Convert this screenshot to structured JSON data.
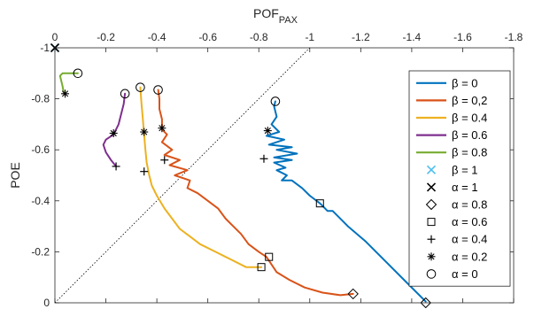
{
  "chart_data": {
    "type": "line",
    "xlabel_main": "POF",
    "xlabel_sub": "PAX",
    "ylabel": "POE",
    "x_axis_location": "top",
    "x_reversed": true,
    "xlim": [
      0,
      -1.8
    ],
    "ylim": [
      -1,
      0
    ],
    "xticks": [
      0,
      -0.2,
      -0.4,
      -0.6,
      -0.8,
      -1,
      -1.2,
      -1.4,
      -1.6,
      -1.8
    ],
    "xtick_labels": [
      "0",
      "-0.2",
      "-0.4",
      "-0.6",
      "-0.8",
      "-1",
      "-1.2",
      "-1.4",
      "-1.6",
      "-1.8"
    ],
    "yticks": [
      0,
      -0.2,
      -0.4,
      -0.6,
      -0.8,
      -1
    ],
    "ytick_labels": [
      "0",
      "-0.2",
      "-0.4",
      "-0.6",
      "-0.8",
      "-1"
    ],
    "grid": false,
    "reference_line": {
      "style": "dotted",
      "color": "#000000",
      "points": [
        [
          0,
          0
        ],
        [
          -1,
          -1
        ]
      ]
    },
    "series": [
      {
        "name": "β = 0",
        "color": "#0072BD",
        "points": [
          [
            -1.455,
            -0.005
          ],
          [
            -1.38,
            -0.08
          ],
          [
            -1.3,
            -0.16
          ],
          [
            -1.22,
            -0.24
          ],
          [
            -1.15,
            -0.3
          ],
          [
            -1.09,
            -0.36
          ],
          [
            -1.07,
            -0.36
          ],
          [
            -1.05,
            -0.38
          ],
          [
            -1.04,
            -0.39
          ],
          [
            -1.0,
            -0.42
          ],
          [
            -0.97,
            -0.45
          ],
          [
            -0.93,
            -0.48
          ],
          [
            -0.89,
            -0.48
          ],
          [
            -0.91,
            -0.5
          ],
          [
            -0.87,
            -0.52
          ],
          [
            -0.905,
            -0.53
          ],
          [
            -0.86,
            -0.55
          ],
          [
            -0.93,
            -0.56
          ],
          [
            -0.86,
            -0.57
          ],
          [
            -0.95,
            -0.585
          ],
          [
            -0.87,
            -0.6
          ],
          [
            -0.93,
            -0.61
          ],
          [
            -0.84,
            -0.62
          ],
          [
            -0.9,
            -0.64
          ],
          [
            -0.83,
            -0.655
          ],
          [
            -0.88,
            -0.67
          ],
          [
            -0.85,
            -0.7
          ],
          [
            -0.87,
            -0.73
          ],
          [
            -0.86,
            -0.77
          ],
          [
            -0.865,
            -0.79
          ]
        ]
      },
      {
        "name": "β = 0,2",
        "color": "#D95319",
        "points": [
          [
            -1.17,
            -0.035
          ],
          [
            -1.12,
            -0.03
          ],
          [
            -1.05,
            -0.04
          ],
          [
            -0.98,
            -0.06
          ],
          [
            -0.92,
            -0.09
          ],
          [
            -0.87,
            -0.12
          ],
          [
            -0.83,
            -0.18
          ],
          [
            -0.8,
            -0.2
          ],
          [
            -0.76,
            -0.23
          ],
          [
            -0.73,
            -0.27
          ],
          [
            -0.7,
            -0.3
          ],
          [
            -0.67,
            -0.33
          ],
          [
            -0.64,
            -0.37
          ],
          [
            -0.6,
            -0.4
          ],
          [
            -0.56,
            -0.43
          ],
          [
            -0.52,
            -0.45
          ],
          [
            -0.53,
            -0.48
          ],
          [
            -0.47,
            -0.5
          ],
          [
            -0.52,
            -0.52
          ],
          [
            -0.45,
            -0.54
          ],
          [
            -0.49,
            -0.56
          ],
          [
            -0.43,
            -0.58
          ],
          [
            -0.46,
            -0.6
          ],
          [
            -0.42,
            -0.63
          ],
          [
            -0.44,
            -0.66
          ],
          [
            -0.42,
            -0.68
          ],
          [
            -0.42,
            -0.72
          ],
          [
            -0.41,
            -0.76
          ],
          [
            -0.41,
            -0.8
          ],
          [
            -0.405,
            -0.835
          ]
        ]
      },
      {
        "name": "β = 0.4",
        "color": "#EDB120",
        "points": [
          [
            -0.81,
            -0.14
          ],
          [
            -0.75,
            -0.14
          ],
          [
            -0.69,
            -0.17
          ],
          [
            -0.63,
            -0.2
          ],
          [
            -0.57,
            -0.23
          ],
          [
            -0.53,
            -0.26
          ],
          [
            -0.49,
            -0.29
          ],
          [
            -0.46,
            -0.33
          ],
          [
            -0.43,
            -0.37
          ],
          [
            -0.4,
            -0.42
          ],
          [
            -0.38,
            -0.46
          ],
          [
            -0.37,
            -0.5
          ],
          [
            -0.36,
            -0.55
          ],
          [
            -0.355,
            -0.6
          ],
          [
            -0.35,
            -0.66
          ],
          [
            -0.345,
            -0.72
          ],
          [
            -0.34,
            -0.78
          ],
          [
            -0.335,
            -0.845
          ]
        ]
      },
      {
        "name": "β = 0.6",
        "color": "#7E2F8E",
        "points": [
          [
            -0.24,
            -0.535
          ],
          [
            -0.22,
            -0.56
          ],
          [
            -0.2,
            -0.59
          ],
          [
            -0.19,
            -0.62
          ],
          [
            -0.2,
            -0.64
          ],
          [
            -0.23,
            -0.66
          ],
          [
            -0.25,
            -0.7
          ],
          [
            -0.26,
            -0.74
          ],
          [
            -0.27,
            -0.78
          ],
          [
            -0.275,
            -0.82
          ]
        ]
      },
      {
        "name": "β = 0.8",
        "color": "#77AC30",
        "points": [
          [
            -0.035,
            -0.82
          ],
          [
            -0.03,
            -0.85
          ],
          [
            -0.025,
            -0.87
          ],
          [
            -0.02,
            -0.89
          ],
          [
            -0.03,
            -0.9
          ],
          [
            -0.09,
            -0.9
          ]
        ]
      },
      {
        "name": "β = 1",
        "color": "#4DBEEE",
        "points": [
          [
            0,
            -1
          ]
        ]
      }
    ],
    "alpha_markers": [
      {
        "name": "α = 1",
        "symbol": "x",
        "points": [
          [
            0,
            -1
          ]
        ]
      },
      {
        "name": "α = 0.8",
        "symbol": "diamond",
        "points": [
          [
            -1.455,
            0
          ],
          [
            -1.17,
            -0.035
          ]
        ]
      },
      {
        "name": "α = 0.6",
        "symbol": "square",
        "points": [
          [
            -1.04,
            -0.39
          ],
          [
            -0.84,
            -0.18
          ],
          [
            -0.81,
            -0.14
          ]
        ]
      },
      {
        "name": "α = 0.4",
        "symbol": "plus",
        "points": [
          [
            -0.82,
            -0.565
          ],
          [
            -0.43,
            -0.56
          ],
          [
            -0.35,
            -0.515
          ],
          [
            -0.24,
            -0.535
          ]
        ]
      },
      {
        "name": "α = 0.2",
        "symbol": "asterisk",
        "points": [
          [
            -0.835,
            -0.675
          ],
          [
            -0.42,
            -0.685
          ],
          [
            -0.35,
            -0.67
          ],
          [
            -0.23,
            -0.665
          ],
          [
            -0.04,
            -0.82
          ]
        ]
      },
      {
        "name": "α = 0",
        "symbol": "circle",
        "points": [
          [
            -0.865,
            -0.79
          ],
          [
            -0.405,
            -0.835
          ],
          [
            -0.335,
            -0.845
          ],
          [
            -0.275,
            -0.82
          ],
          [
            -0.09,
            -0.9
          ]
        ]
      }
    ],
    "legend": {
      "placement": "right",
      "entries": [
        {
          "label": "β = 0",
          "kind": "line",
          "color": "#0072BD"
        },
        {
          "label": "β = 0,2",
          "kind": "line",
          "color": "#D95319"
        },
        {
          "label": "β = 0.4",
          "kind": "line",
          "color": "#EDB120"
        },
        {
          "label": "β = 0.6",
          "kind": "line",
          "color": "#7E2F8E"
        },
        {
          "label": "β = 0.8",
          "kind": "line",
          "color": "#77AC30"
        },
        {
          "label": "β = 1",
          "kind": "marker",
          "symbol": "x",
          "color": "#4DBEEE"
        },
        {
          "label": "α = 1",
          "kind": "marker",
          "symbol": "x",
          "color": "#000000"
        },
        {
          "label": "α = 0.8",
          "kind": "marker",
          "symbol": "diamond",
          "color": "#000000"
        },
        {
          "label": "α = 0.6",
          "kind": "marker",
          "symbol": "square",
          "color": "#000000"
        },
        {
          "label": "α = 0.4",
          "kind": "marker",
          "symbol": "plus",
          "color": "#000000"
        },
        {
          "label": "α = 0.2",
          "kind": "marker",
          "symbol": "asterisk",
          "color": "#000000"
        },
        {
          "label": "α = 0",
          "kind": "marker",
          "symbol": "circle",
          "color": "#000000"
        }
      ]
    }
  }
}
